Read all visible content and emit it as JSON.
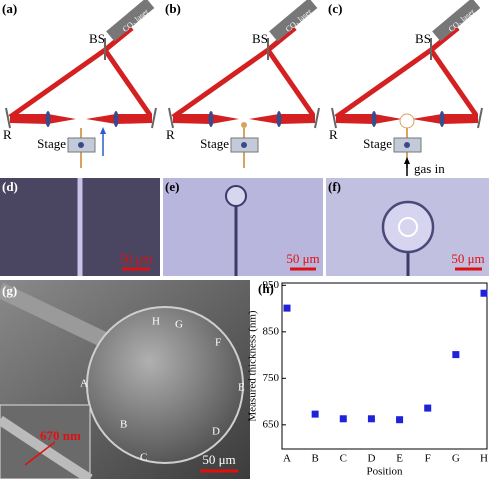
{
  "setup_panels": [
    {
      "label": "(a)",
      "splitter": "BS",
      "laser": "CO₂ laser",
      "mirror": "R",
      "stage": "Stage"
    },
    {
      "label": "(b)",
      "splitter": "BS",
      "laser": "CO₂ laser",
      "mirror": "R",
      "stage": "Stage"
    },
    {
      "label": "(c)",
      "splitter": "BS",
      "laser": "CO₂ laser",
      "mirror": "R",
      "stage": "Stage",
      "gas": "gas in"
    }
  ],
  "micrographs": [
    {
      "label": "(d)",
      "scale_bar": "50 μm"
    },
    {
      "label": "(e)",
      "scale_bar": "50 μm"
    },
    {
      "label": "(f)",
      "scale_bar": "50 μm"
    }
  ],
  "sem_image": {
    "label": "(g)",
    "positions": [
      "H",
      "G",
      "F",
      "E",
      "D",
      "C",
      "B",
      "A"
    ],
    "thickness": "670 nm",
    "scale_bar": "50 μm"
  },
  "chart_data": {
    "type": "scatter",
    "panel_label": "(h)",
    "x_label": "Position",
    "y_label": "Measured thickness (nm)",
    "categories": [
      "A",
      "B",
      "C",
      "D",
      "E",
      "F",
      "G",
      "H"
    ],
    "values": [
      901,
      673,
      663,
      663,
      661,
      686,
      801,
      933
    ],
    "color": "#1f22d8",
    "ylim": [
      598,
      955
    ],
    "yticks": [
      650,
      750,
      850,
      950
    ]
  }
}
